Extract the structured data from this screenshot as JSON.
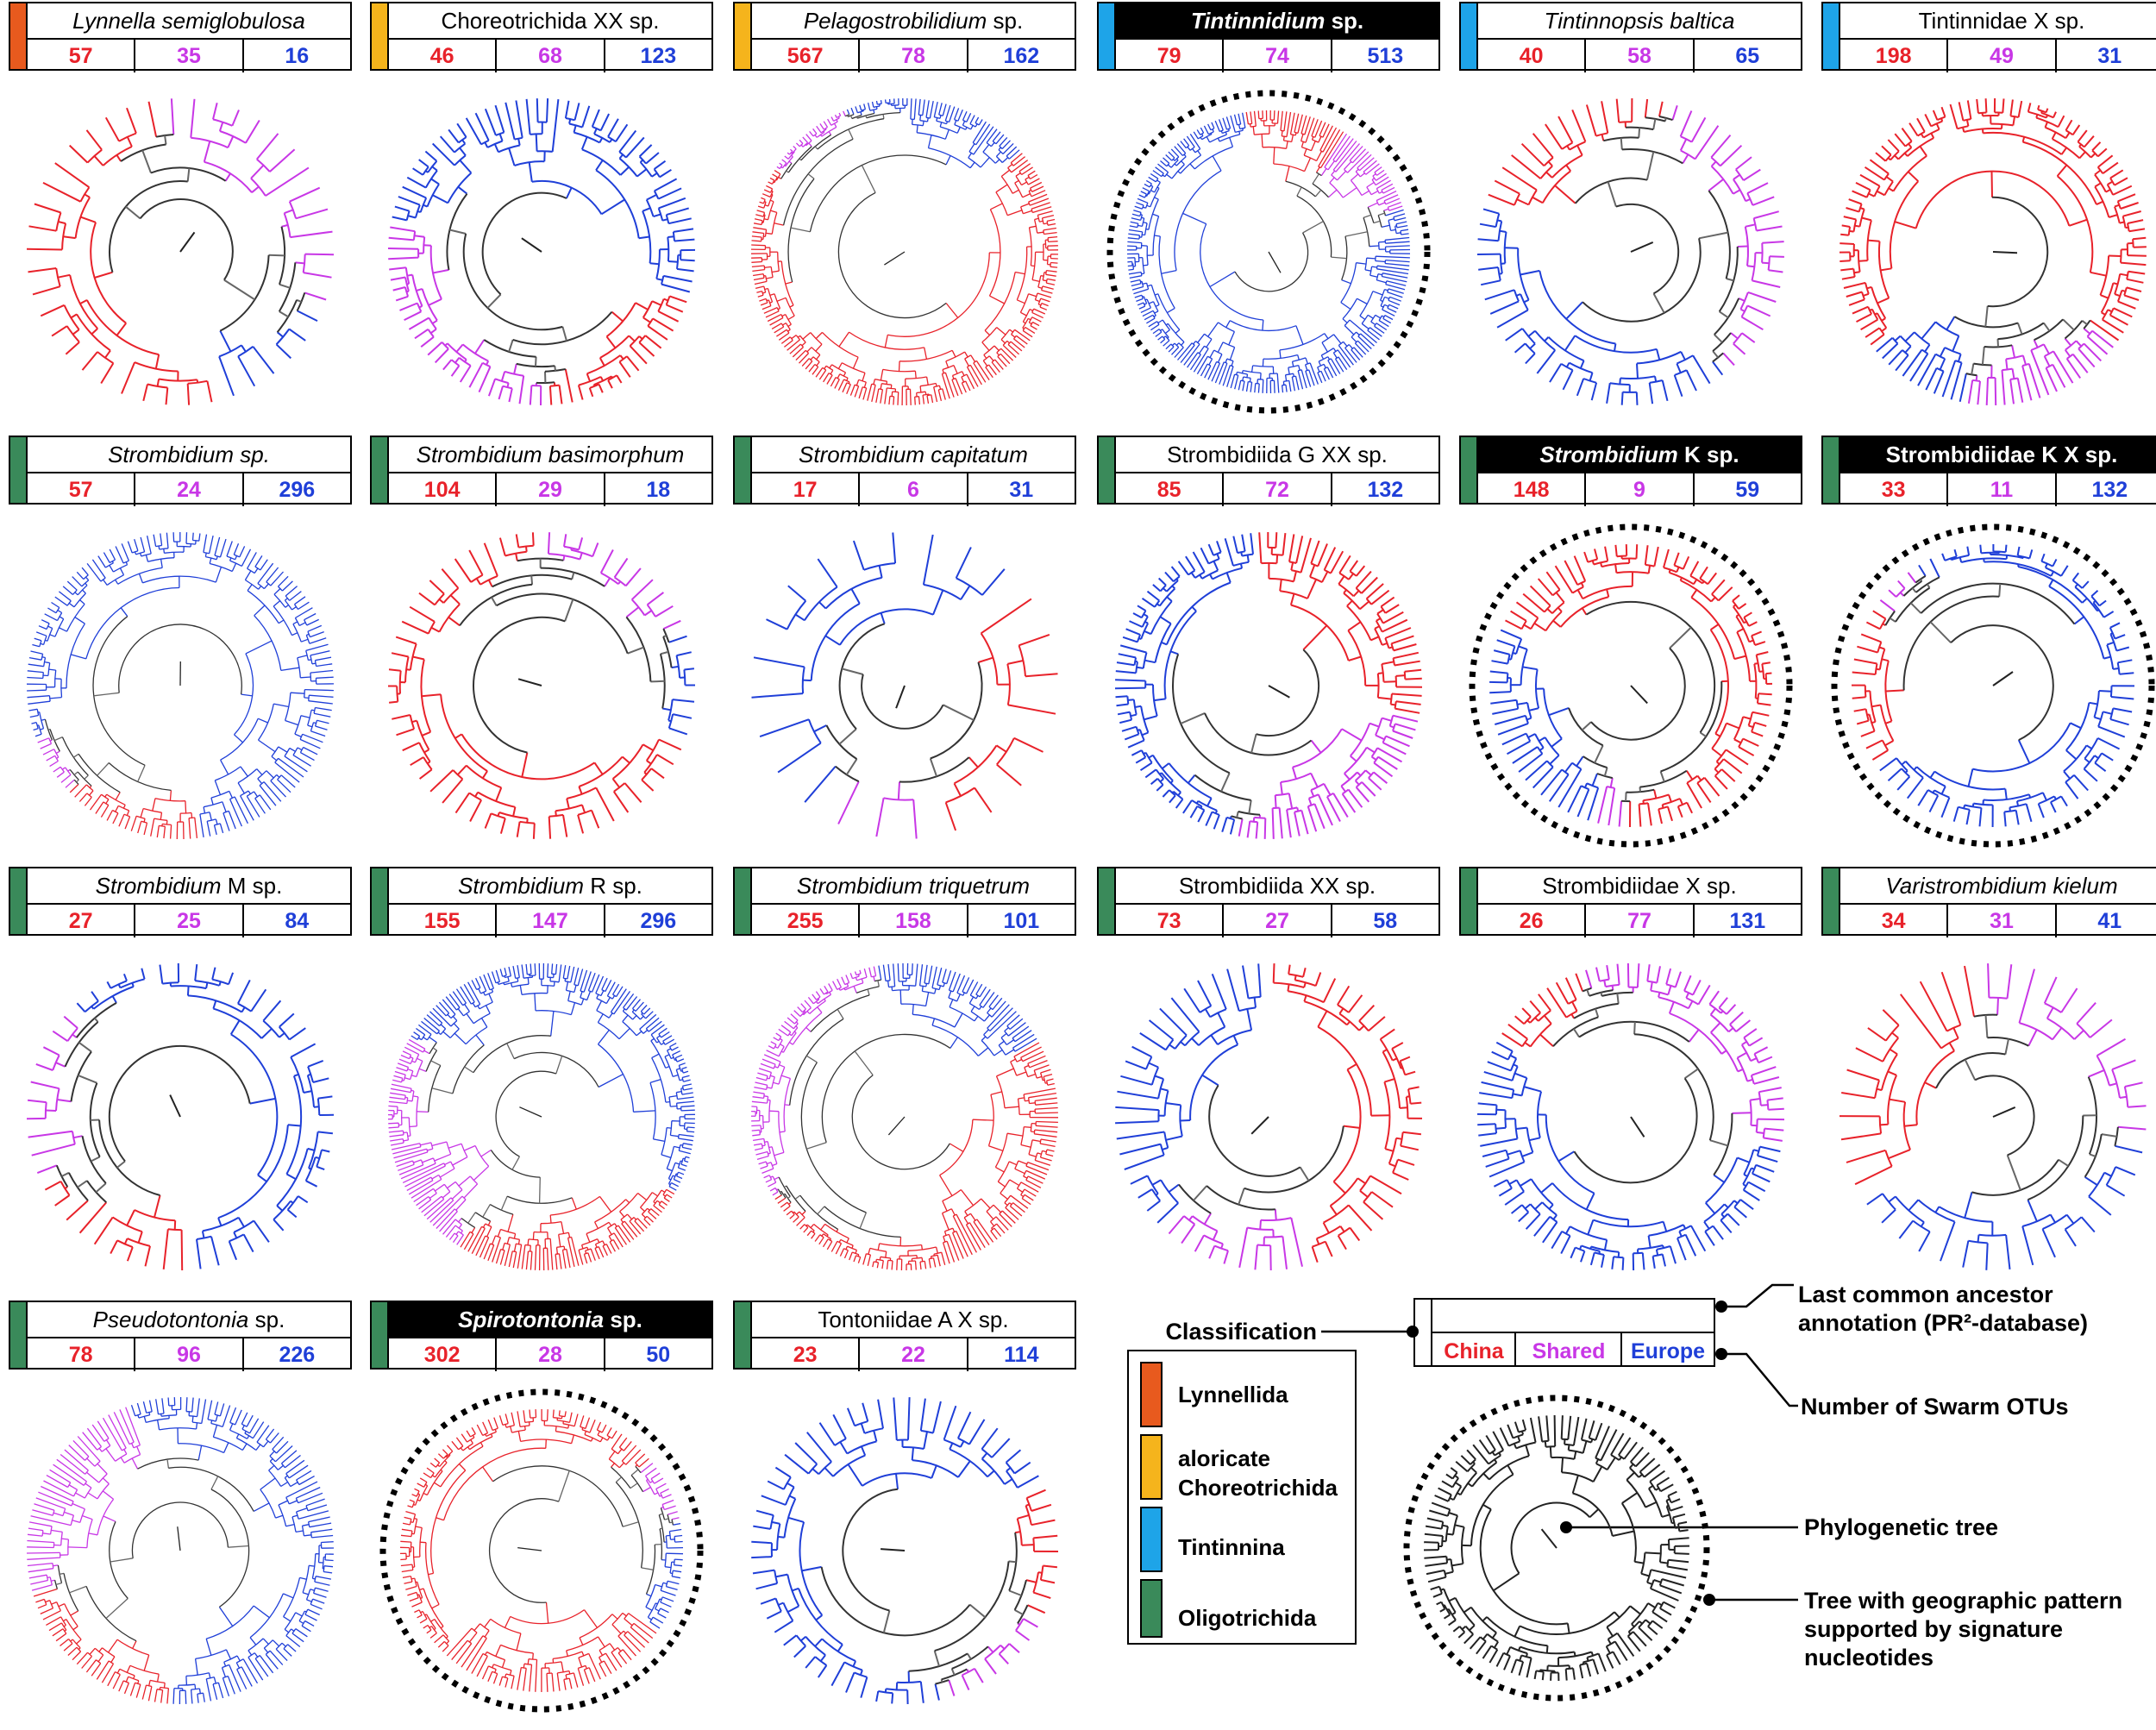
{
  "colors": {
    "china": "#e8222a",
    "shared": "#c837e6",
    "europe": "#1f3fd8",
    "Lynnellida": "#e85a1e",
    "aloricate Choreotrichida": "#f5b41c",
    "Tintinnina": "#1ea4e8",
    "Oligotrichida": "#3a8a5a"
  },
  "panels": [
    {
      "name": [
        {
          "t": "Lynnella semiglobulosa",
          "i": true
        }
      ],
      "cls": "Lynnellida",
      "counts": [
        "57",
        "35",
        "16"
      ],
      "hl": false,
      "dotted": false
    },
    {
      "name": [
        {
          "t": "Choreotrichida XX sp.",
          "i": false
        }
      ],
      "cls": "aloricate Choreotrichida",
      "counts": [
        "46",
        "68",
        "123"
      ],
      "hl": false,
      "dotted": false
    },
    {
      "name": [
        {
          "t": "Pelagostrobilidium",
          "i": true
        },
        {
          "t": " sp.",
          "i": false
        }
      ],
      "cls": "aloricate Choreotrichida",
      "counts": [
        "567",
        "78",
        "162"
      ],
      "hl": false,
      "dotted": false
    },
    {
      "name": [
        {
          "t": "Tintinnidium",
          "i": true
        },
        {
          "t": " sp.",
          "i": false
        }
      ],
      "cls": "Tintinnina",
      "counts": [
        "79",
        "74",
        "513"
      ],
      "hl": true,
      "dotted": true
    },
    {
      "name": [
        {
          "t": "Tintinnopsis baltica",
          "i": true
        }
      ],
      "cls": "Tintinnina",
      "counts": [
        "40",
        "58",
        "65"
      ],
      "hl": false,
      "dotted": false
    },
    {
      "name": [
        {
          "t": "Tintinnidae X sp.",
          "i": false
        }
      ],
      "cls": "Tintinnina",
      "counts": [
        "198",
        "49",
        "31"
      ],
      "hl": false,
      "dotted": false
    },
    {
      "name": [
        {
          "t": "Strombidium sp.",
          "i": true
        }
      ],
      "cls": "Oligotrichida",
      "counts": [
        "57",
        "24",
        "296"
      ],
      "hl": false,
      "dotted": false
    },
    {
      "name": [
        {
          "t": "Strombidium basimorphum",
          "i": true
        }
      ],
      "cls": "Oligotrichida",
      "counts": [
        "104",
        "29",
        "18"
      ],
      "hl": false,
      "dotted": false
    },
    {
      "name": [
        {
          "t": "Strombidium capitatum",
          "i": true
        }
      ],
      "cls": "Oligotrichida",
      "counts": [
        "17",
        "6",
        "31"
      ],
      "hl": false,
      "dotted": false
    },
    {
      "name": [
        {
          "t": "Strombidiida G XX sp.",
          "i": false
        }
      ],
      "cls": "Oligotrichida",
      "counts": [
        "85",
        "72",
        "132"
      ],
      "hl": false,
      "dotted": false
    },
    {
      "name": [
        {
          "t": "Strombidium",
          "i": true
        },
        {
          "t": " K sp.",
          "i": false
        }
      ],
      "cls": "Oligotrichida",
      "counts": [
        "148",
        "9",
        "59"
      ],
      "hl": true,
      "dotted": true
    },
    {
      "name": [
        {
          "t": "Strombidiidae K X sp.",
          "i": false
        }
      ],
      "cls": "Oligotrichida",
      "counts": [
        "33",
        "11",
        "132"
      ],
      "hl": true,
      "dotted": true
    },
    {
      "name": [
        {
          "t": "Strombidium",
          "i": true
        },
        {
          "t": " M sp.",
          "i": false
        }
      ],
      "cls": "Oligotrichida",
      "counts": [
        "27",
        "25",
        "84"
      ],
      "hl": false,
      "dotted": false
    },
    {
      "name": [
        {
          "t": "Strombidium",
          "i": true
        },
        {
          "t": " R sp.",
          "i": false
        }
      ],
      "cls": "Oligotrichida",
      "counts": [
        "155",
        "147",
        "296"
      ],
      "hl": false,
      "dotted": false
    },
    {
      "name": [
        {
          "t": "Strombidium triquetrum",
          "i": true
        }
      ],
      "cls": "Oligotrichida",
      "counts": [
        "255",
        "158",
        "101"
      ],
      "hl": false,
      "dotted": false
    },
    {
      "name": [
        {
          "t": "Strombidiida XX sp.",
          "i": false
        }
      ],
      "cls": "Oligotrichida",
      "counts": [
        "73",
        "27",
        "58"
      ],
      "hl": false,
      "dotted": false
    },
    {
      "name": [
        {
          "t": "Strombidiidae X sp.",
          "i": false
        }
      ],
      "cls": "Oligotrichida",
      "counts": [
        "26",
        "77",
        "131"
      ],
      "hl": false,
      "dotted": false
    },
    {
      "name": [
        {
          "t": "Varistrombidium kielum",
          "i": true
        }
      ],
      "cls": "Oligotrichida",
      "counts": [
        "34",
        "31",
        "41"
      ],
      "hl": false,
      "dotted": false
    },
    {
      "name": [
        {
          "t": "Pseudotontonia",
          "i": true
        },
        {
          "t": " sp.",
          "i": false
        }
      ],
      "cls": "Oligotrichida",
      "counts": [
        "78",
        "96",
        "226"
      ],
      "hl": false,
      "dotted": false
    },
    {
      "name": [
        {
          "t": "Spirotontonia",
          "i": true
        },
        {
          "t": " sp.",
          "i": false
        }
      ],
      "cls": "Oligotrichida",
      "counts": [
        "302",
        "28",
        "50"
      ],
      "hl": true,
      "dotted": true
    },
    {
      "name": [
        {
          "t": "Tontoniidae A X sp.",
          "i": false
        }
      ],
      "cls": "Oligotrichida",
      "counts": [
        "23",
        "22",
        "114"
      ],
      "hl": false,
      "dotted": false
    }
  ],
  "legend": {
    "classification_label": "Classification",
    "classes": [
      "Lynnellida",
      "aloricate Choreotrichida",
      "Tintinnina",
      "Oligotrichida"
    ],
    "class_display": [
      "Lynnellida",
      "aloricate\nChoreotrichida",
      "Tintinnina",
      "Oligotrichida"
    ],
    "header_counts": [
      "China",
      "Shared",
      "Europe"
    ],
    "lca_annotation": "Last common ancestor\nannotation (PR²-database)",
    "otu_label": "Number of Swarm OTUs",
    "tree_label": "Phylogenetic tree",
    "signature_label": "Tree with geographic pattern\nsupported by signature\nnucleotides"
  }
}
